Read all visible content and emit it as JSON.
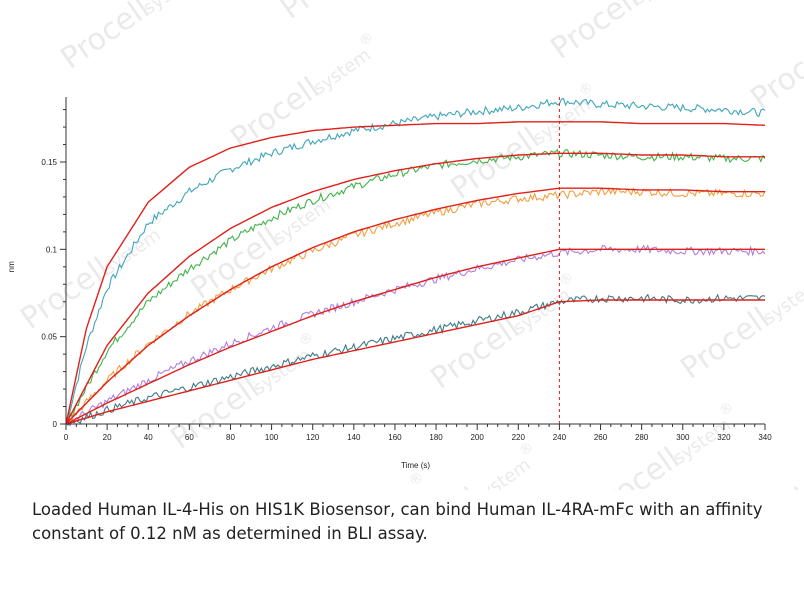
{
  "watermark": {
    "brand": "Procell",
    "sub": "system",
    "mark": "®"
  },
  "caption": "Loaded Human IL-4-His on HIS1K Biosensor, can bind Human IL-4RA-mFc with an affinity constant of 0.12 nM as determined in BLI assay.",
  "chart_data": {
    "type": "line",
    "title": "",
    "xlabel": "Time (s)",
    "ylabel": "nm",
    "xlim": [
      0,
      340
    ],
    "ylim": [
      -0.003,
      0.185
    ],
    "x_ticks": [
      0,
      20,
      40,
      60,
      80,
      100,
      120,
      140,
      160,
      180,
      200,
      220,
      240,
      260,
      280,
      300,
      320,
      340
    ],
    "y_ticks": [
      0,
      0.05,
      0.1,
      0.15
    ],
    "y_tick_labels": [
      "0",
      "0.05",
      "0.1",
      "0.15"
    ],
    "grid": false,
    "dissociation_start": 240,
    "fit_color": "#e0201b",
    "series": [
      {
        "color": "#3fa6b8",
        "x": [
          0,
          10,
          20,
          40,
          60,
          80,
          100,
          120,
          140,
          160,
          180,
          200,
          220,
          240,
          260,
          280,
          300,
          320,
          340
        ],
        "values": [
          0,
          0.045,
          0.078,
          0.115,
          0.133,
          0.146,
          0.155,
          0.162,
          0.168,
          0.172,
          0.176,
          0.179,
          0.181,
          0.185,
          0.183,
          0.182,
          0.181,
          0.18,
          0.178
        ]
      },
      {
        "color": "#42b34a",
        "x": [
          0,
          20,
          40,
          60,
          80,
          100,
          120,
          140,
          160,
          180,
          200,
          220,
          240,
          260,
          280,
          300,
          320,
          340
        ],
        "values": [
          0,
          0.042,
          0.07,
          0.089,
          0.105,
          0.118,
          0.128,
          0.136,
          0.143,
          0.148,
          0.151,
          0.153,
          0.155,
          0.154,
          0.153,
          0.153,
          0.152,
          0.152
        ]
      },
      {
        "color": "#f0a040",
        "x": [
          0,
          20,
          40,
          60,
          80,
          100,
          120,
          140,
          160,
          180,
          200,
          220,
          240,
          260,
          280,
          300,
          320,
          340
        ],
        "values": [
          0,
          0.025,
          0.046,
          0.063,
          0.077,
          0.089,
          0.099,
          0.108,
          0.115,
          0.121,
          0.126,
          0.129,
          0.131,
          0.133,
          0.133,
          0.132,
          0.132,
          0.132
        ]
      },
      {
        "color": "#b07fe0",
        "x": [
          0,
          20,
          40,
          60,
          80,
          100,
          120,
          140,
          160,
          180,
          200,
          220,
          240,
          260,
          280,
          300,
          320,
          340
        ],
        "values": [
          0,
          0.013,
          0.025,
          0.036,
          0.046,
          0.055,
          0.063,
          0.07,
          0.077,
          0.083,
          0.089,
          0.094,
          0.098,
          0.1,
          0.1,
          0.099,
          0.099,
          0.099
        ]
      },
      {
        "color": "#3f7b86",
        "x": [
          0,
          20,
          40,
          60,
          80,
          100,
          120,
          140,
          160,
          180,
          200,
          220,
          240,
          260,
          280,
          300,
          320,
          340
        ],
        "values": [
          0,
          0.008,
          0.015,
          0.021,
          0.027,
          0.033,
          0.039,
          0.044,
          0.049,
          0.054,
          0.059,
          0.064,
          0.07,
          0.072,
          0.072,
          0.071,
          0.072,
          0.072
        ]
      }
    ],
    "fits": [
      {
        "x": [
          0,
          10,
          20,
          40,
          60,
          80,
          100,
          120,
          140,
          160,
          180,
          200,
          220,
          240,
          260,
          280,
          300,
          320,
          340
        ],
        "values": [
          0,
          0.055,
          0.09,
          0.127,
          0.147,
          0.158,
          0.164,
          0.168,
          0.17,
          0.171,
          0.172,
          0.172,
          0.173,
          0.173,
          0.173,
          0.172,
          0.172,
          0.172,
          0.171
        ]
      },
      {
        "x": [
          0,
          20,
          40,
          60,
          80,
          100,
          120,
          140,
          160,
          180,
          200,
          220,
          240,
          260,
          280,
          300,
          320,
          340
        ],
        "values": [
          0,
          0.045,
          0.075,
          0.096,
          0.112,
          0.124,
          0.133,
          0.14,
          0.145,
          0.149,
          0.152,
          0.154,
          0.155,
          0.155,
          0.154,
          0.154,
          0.153,
          0.153
        ]
      },
      {
        "x": [
          0,
          20,
          40,
          60,
          80,
          100,
          120,
          140,
          160,
          180,
          200,
          220,
          240,
          260,
          280,
          300,
          320,
          340
        ],
        "values": [
          0,
          0.024,
          0.045,
          0.062,
          0.077,
          0.09,
          0.101,
          0.11,
          0.117,
          0.123,
          0.128,
          0.132,
          0.135,
          0.135,
          0.134,
          0.134,
          0.133,
          0.133
        ]
      },
      {
        "x": [
          0,
          20,
          40,
          60,
          80,
          100,
          120,
          140,
          160,
          180,
          200,
          220,
          240,
          260,
          280,
          300,
          320,
          340
        ],
        "values": [
          0,
          0.012,
          0.023,
          0.034,
          0.044,
          0.053,
          0.062,
          0.07,
          0.077,
          0.084,
          0.09,
          0.095,
          0.1,
          0.1,
          0.1,
          0.1,
          0.1,
          0.1
        ]
      },
      {
        "x": [
          0,
          20,
          40,
          60,
          80,
          100,
          120,
          140,
          160,
          180,
          200,
          220,
          240,
          260,
          280,
          300,
          320,
          340
        ],
        "values": [
          0,
          0.007,
          0.013,
          0.019,
          0.025,
          0.031,
          0.037,
          0.042,
          0.047,
          0.052,
          0.057,
          0.062,
          0.07,
          0.071,
          0.071,
          0.071,
          0.071,
          0.071
        ]
      }
    ]
  }
}
